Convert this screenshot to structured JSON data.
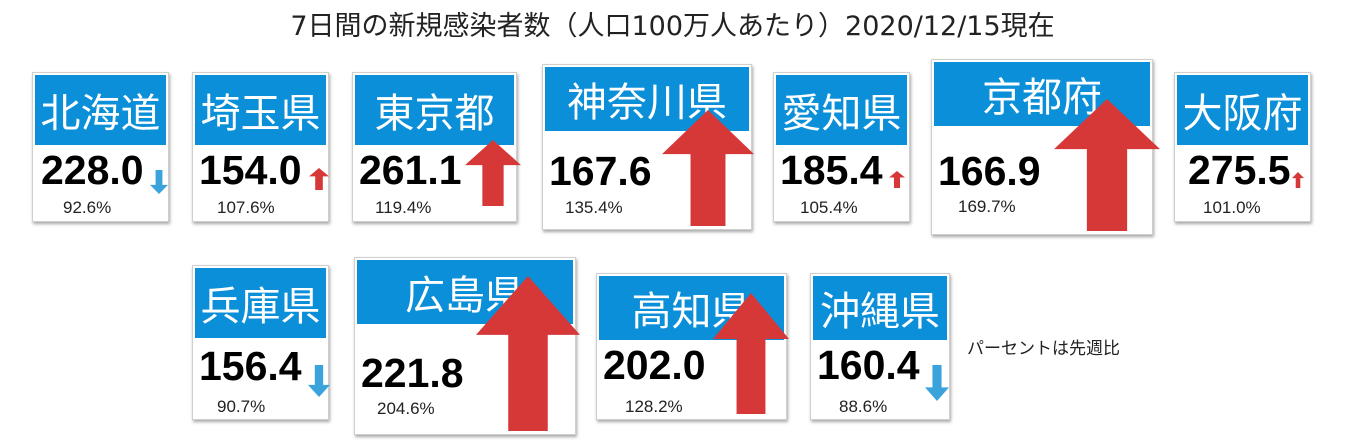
{
  "title": "7日間の新規感染者数（人口100万人あたり）2020/12/15現在",
  "note": "パーセントは先週比",
  "colors": {
    "header": "#0b8fd8",
    "arrow_up": "#d63838",
    "arrow_down": "#3ba3dc",
    "text": "#000000"
  },
  "prefectures": [
    {
      "name": "北海道",
      "value": "228.0",
      "change": "92.6%",
      "weekly_ratio": 92.6,
      "direction": "down"
    },
    {
      "name": "埼玉県",
      "value": "154.0",
      "change": "107.6%",
      "weekly_ratio": 107.6,
      "direction": "up"
    },
    {
      "name": "東京都",
      "value": "261.1",
      "change": "119.4%",
      "weekly_ratio": 119.4,
      "direction": "up"
    },
    {
      "name": "神奈川県",
      "value": "167.6",
      "change": "135.4%",
      "weekly_ratio": 135.4,
      "direction": "up"
    },
    {
      "name": "愛知県",
      "value": "185.4",
      "change": "105.4%",
      "weekly_ratio": 105.4,
      "direction": "up"
    },
    {
      "name": "京都府",
      "value": "166.9",
      "change": "169.7%",
      "weekly_ratio": 169.7,
      "direction": "up"
    },
    {
      "name": "大阪府",
      "value": "275.5",
      "change": "101.0%",
      "weekly_ratio": 101.0,
      "direction": "up"
    },
    {
      "name": "兵庫県",
      "value": "156.4",
      "change": "90.7%",
      "weekly_ratio": 90.7,
      "direction": "down"
    },
    {
      "name": "広島県",
      "value": "221.8",
      "change": "204.6%",
      "weekly_ratio": 204.6,
      "direction": "up"
    },
    {
      "name": "高知県",
      "value": "202.0",
      "change": "128.2%",
      "weekly_ratio": 128.2,
      "direction": "up"
    },
    {
      "name": "沖縄県",
      "value": "160.4",
      "change": "88.6%",
      "weekly_ratio": 88.6,
      "direction": "down"
    }
  ]
}
